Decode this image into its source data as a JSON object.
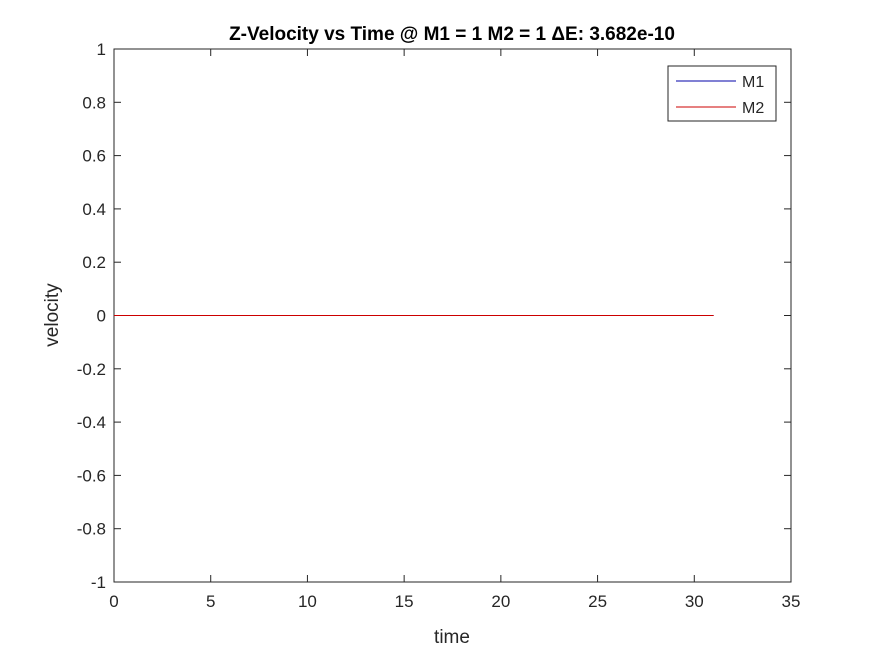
{
  "chart_data": {
    "type": "line",
    "title": "Z-Velocity vs Time @ M1 = 1 M2 = 1 ΔE: 3.682e-10",
    "xlabel": "time",
    "ylabel": "velocity",
    "xlim": [
      0,
      35
    ],
    "ylim": [
      -1,
      1
    ],
    "xticks": [
      0,
      5,
      10,
      15,
      20,
      25,
      30,
      35
    ],
    "yticks": [
      -1,
      -0.8,
      -0.6,
      -0.4,
      -0.2,
      0,
      0.2,
      0.4,
      0.6,
      0.8,
      1
    ],
    "grid": false,
    "legend_position": "top-right",
    "series": [
      {
        "name": "M1",
        "color": "#0000aa",
        "x": [
          0,
          31
        ],
        "y": [
          0,
          0
        ]
      },
      {
        "name": "M2",
        "color": "#cc0000",
        "x": [
          0,
          31
        ],
        "y": [
          0,
          0
        ]
      }
    ]
  }
}
